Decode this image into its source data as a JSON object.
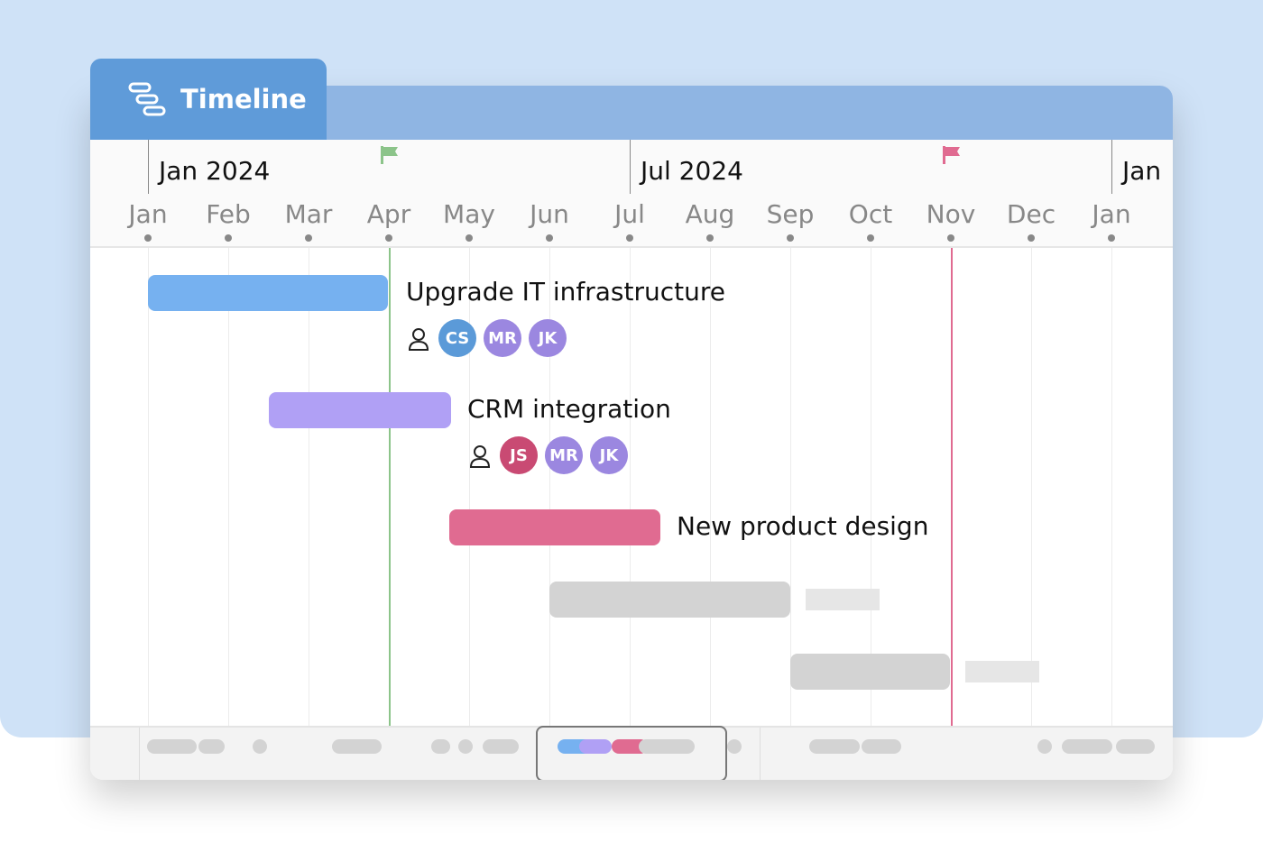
{
  "header": {
    "title": "Timeline",
    "icon": "timeline-icon"
  },
  "years": [
    "Jan 2024",
    "Jul 2024",
    "Jan"
  ],
  "months": [
    "Jan",
    "Feb",
    "Mar",
    "Apr",
    "May",
    "Jun",
    "Jul",
    "Aug",
    "Sep",
    "Oct",
    "Nov",
    "Dec",
    "Jan"
  ],
  "markers": [
    {
      "month": "Apr",
      "color": "#8cc48a",
      "icon": "flag-icon"
    },
    {
      "month": "Nov",
      "color": "#e06b91",
      "icon": "flag-icon"
    }
  ],
  "tasks": [
    {
      "name": "Upgrade IT infrastructure",
      "color": "#76b1f0",
      "start": "Jan",
      "end": "Apr",
      "assignees": [
        {
          "initials": "CS",
          "color": "#5b9ad8"
        },
        {
          "initials": "MR",
          "color": "#9b87e0"
        },
        {
          "initials": "JK",
          "color": "#9b87e0"
        }
      ]
    },
    {
      "name": "CRM integration",
      "color": "#b0a0f5",
      "start": "Feb 15",
      "end": "May",
      "assignees": [
        {
          "initials": "JS",
          "color": "#c94a73"
        },
        {
          "initials": "MR",
          "color": "#9b87e0"
        },
        {
          "initials": "JK",
          "color": "#9b87e0"
        }
      ]
    },
    {
      "name": "New product design",
      "color": "#e06b91",
      "start": "Apr 25",
      "end": "Jul 10"
    }
  ],
  "colors": {
    "accent": "#5f9bd9",
    "placeholder": "#d3d3d3"
  }
}
